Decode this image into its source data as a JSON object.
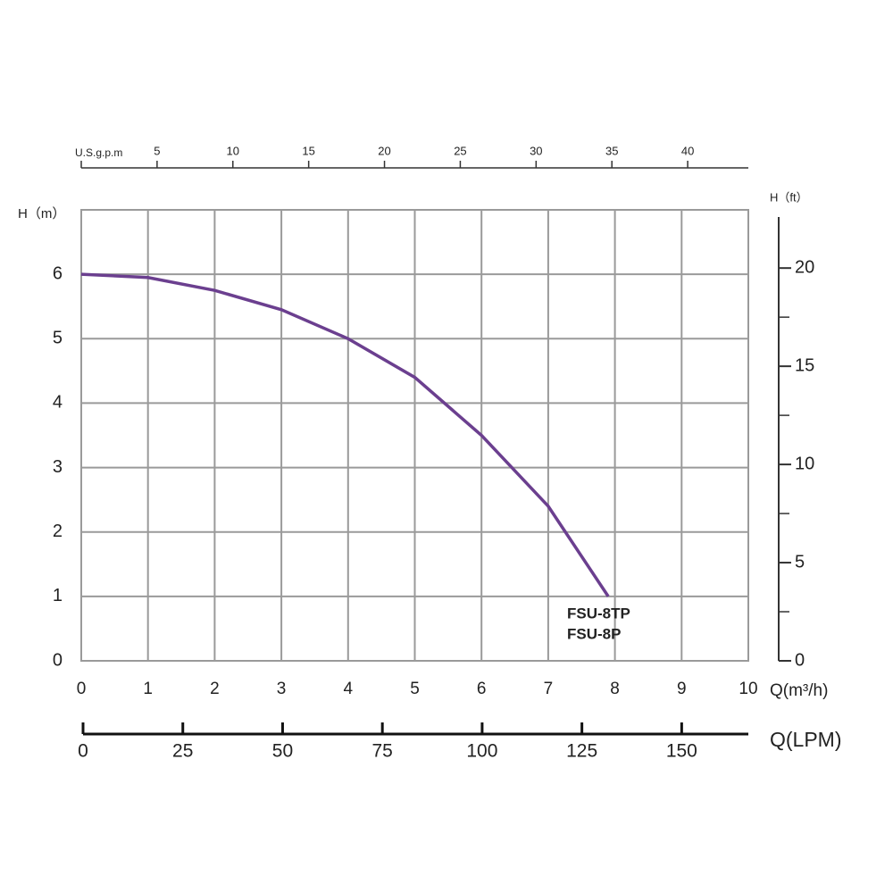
{
  "chart_data": {
    "type": "line",
    "x_label": "Q(m³/h)",
    "y_label": "H（m）",
    "x": [
      0,
      1,
      2,
      3,
      4,
      5,
      6,
      7,
      7.9
    ],
    "series": [
      {
        "color": "#6b3f8f",
        "values": [
          6,
          5.95,
          5.75,
          5.45,
          5,
          4.4,
          3.5,
          2.4,
          1
        ]
      }
    ],
    "curve_labels": [
      "FSU-8TP",
      "FSU-8P"
    ],
    "xlim": [
      0,
      10
    ],
    "xticks": [
      0,
      1,
      2,
      3,
      4,
      5,
      6,
      7,
      8,
      9,
      10
    ],
    "ylim": [
      0,
      7
    ],
    "yticks": [
      0,
      1,
      2,
      3,
      4,
      5,
      6
    ],
    "grid": true,
    "top_axis": {
      "label": "U.S.g.p.m",
      "xlim": [
        0,
        44
      ],
      "xticks": [
        5,
        10,
        15,
        20,
        25,
        30,
        35,
        40
      ]
    },
    "bottom_axis": {
      "label": "Q(LPM)",
      "xlim": [
        0,
        166.7
      ],
      "xticks": [
        0,
        25,
        50,
        75,
        100,
        125,
        150
      ]
    },
    "right_axis": {
      "label": "H（ft）",
      "y2lim": [
        0,
        22.6
      ],
      "y2ticks": [
        0,
        5,
        10,
        15,
        20
      ],
      "minor_ticks": [
        2.5,
        7.5,
        12.5,
        17.5
      ]
    }
  }
}
